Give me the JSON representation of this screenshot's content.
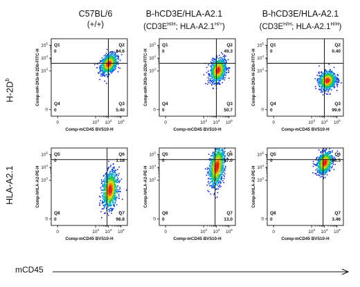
{
  "columns": [
    {
      "line1": "C57BL/6",
      "line2": "(+/+)",
      "sup2": "",
      "line2_tail": ""
    },
    {
      "line1": "B-hCD3E/HLA-A2.1",
      "line2": "(CD3E",
      "sup2": "H/H",
      "line2_tail": "; HLA-A2.1",
      "sup3": "H/+",
      "close": ")"
    },
    {
      "line1": "B-hCD3E/HLA-A2.1",
      "line2": "(CD3E",
      "sup2": "H/H",
      "line2_tail": "; HLA-A2.1",
      "sup3": "H/H",
      "close": ")"
    }
  ],
  "rows": [
    {
      "label": "H-2D",
      "sup": "b"
    },
    {
      "label": "HLA-A2.1",
      "sup": ""
    }
  ],
  "bottom_axis_label": "mCD45",
  "chart_data": [
    {
      "type": "scatter",
      "panel": "row1-col1",
      "xlabel": "Comp-mCD45 BV510-H",
      "ylabel": "Comp-mH-2Kb-H-2Db-FITC-H",
      "quadrants": [
        {
          "name": "Q1",
          "value": "0"
        },
        {
          "name": "Q2",
          "value": "94.6"
        },
        {
          "name": "Q4",
          "value": "0"
        },
        {
          "name": "Q3",
          "value": "5.40"
        }
      ],
      "population_center": [
        4.0,
        3.6
      ]
    },
    {
      "type": "scatter",
      "panel": "row1-col2",
      "xlabel": "Comp-mCD45 BV510-H",
      "ylabel": "Comp-mH-2Kb-H-2Db-FITC-H",
      "quadrants": [
        {
          "name": "Q1",
          "value": "0"
        },
        {
          "name": "Q2",
          "value": "49.3"
        },
        {
          "name": "Q4",
          "value": "0"
        },
        {
          "name": "Q3",
          "value": "50.7"
        }
      ],
      "population_center": [
        4.1,
        3.1
      ]
    },
    {
      "type": "scatter",
      "panel": "row1-col3",
      "xlabel": "Comp-mCD45 BV510-H",
      "ylabel": "Comp-mH-2Kb-H-2Db-FITC-H",
      "quadrants": [
        {
          "name": "Q1",
          "value": "0"
        },
        {
          "name": "Q2",
          "value": "0.40"
        },
        {
          "name": "Q4",
          "value": "0"
        },
        {
          "name": "Q3",
          "value": "99.6"
        }
      ],
      "population_center": [
        4.2,
        2.3
      ]
    },
    {
      "type": "scatter",
      "panel": "row2-col1",
      "xlabel": "Comp-mCD45 BV510-H",
      "ylabel": "Comp-hHLA-A2-PE-H",
      "quadrants": [
        {
          "name": "Q5",
          "value": "0"
        },
        {
          "name": "Q6",
          "value": "1.18"
        },
        {
          "name": "Q8",
          "value": "0"
        },
        {
          "name": "Q7",
          "value": "98.8"
        }
      ],
      "population_center": [
        4.1,
        2.3
      ]
    },
    {
      "type": "scatter",
      "panel": "row2-col2",
      "xlabel": "Comp-mCD45 BV510-H",
      "ylabel": "Comp-hHLA-A2-PE-H",
      "quadrants": [
        {
          "name": "Q5",
          "value": "0"
        },
        {
          "name": "Q6",
          "value": "87.0"
        },
        {
          "name": "Q8",
          "value": "0"
        },
        {
          "name": "Q7",
          "value": "13.0"
        }
      ],
      "population_center": [
        4.0,
        4.1
      ]
    },
    {
      "type": "scatter",
      "panel": "row2-col3",
      "xlabel": "Comp-mCD45 BV510-H",
      "ylabel": "Comp-hHLA-A2-PE-H",
      "quadrants": [
        {
          "name": "Q5",
          "value": "0"
        },
        {
          "name": "Q6",
          "value": "96.5"
        },
        {
          "name": "Q8",
          "value": "0"
        },
        {
          "name": "Q7",
          "value": "3.46"
        }
      ],
      "population_center": [
        4.0,
        4.4
      ]
    }
  ],
  "axis": {
    "xticks": [
      "0",
      "10^3",
      "10^4",
      "10^5"
    ],
    "yticks": [
      "0",
      "10^3",
      "10^4",
      "10^5"
    ],
    "xlim": [
      -0.5,
      5.5
    ],
    "ylim": [
      -0.5,
      5.5
    ],
    "scale": "biexponential"
  }
}
